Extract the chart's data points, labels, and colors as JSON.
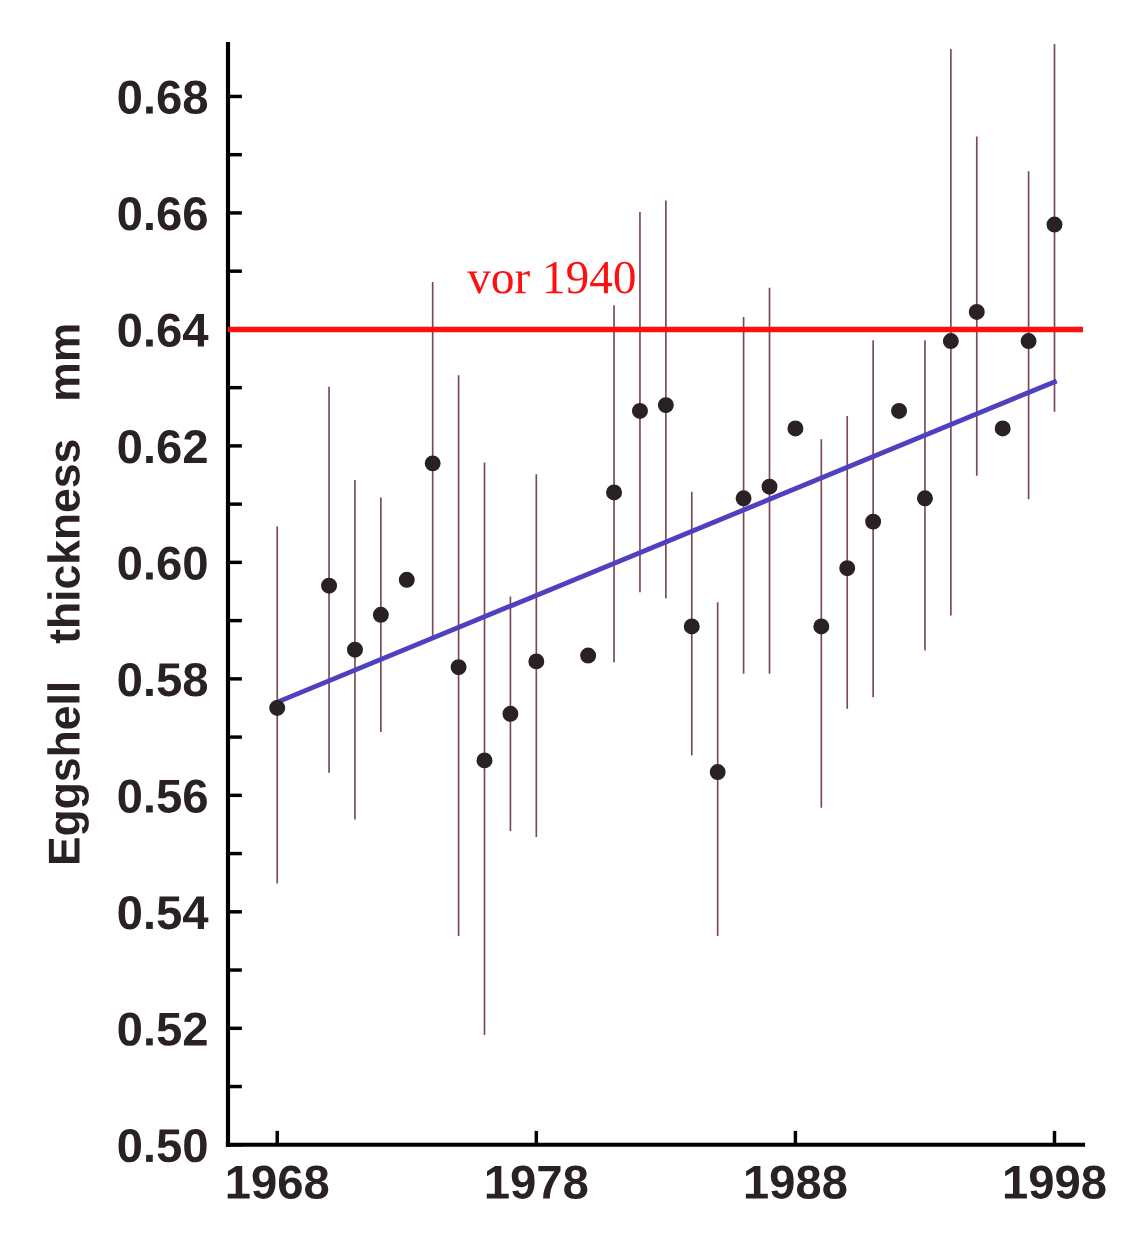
{
  "chart_data": {
    "type": "scatter",
    "ylabel": "Eggshell   thickness   mm",
    "xlim": [
      1966.1,
      1999.1
    ],
    "xticks": [
      1968,
      1978,
      1988,
      1998
    ],
    "ylim": [
      0.5,
      0.689
    ],
    "yticks": [
      {
        "value": 0.5,
        "label": "0.50"
      },
      {
        "value": 0.51,
        "label": null
      },
      {
        "value": 0.52,
        "label": "0.52"
      },
      {
        "value": 0.53,
        "label": null
      },
      {
        "value": 0.54,
        "label": "0.54"
      },
      {
        "value": 0.55,
        "label": null
      },
      {
        "value": 0.56,
        "label": "0.56"
      },
      {
        "value": 0.57,
        "label": null
      },
      {
        "value": 0.58,
        "label": "0.58"
      },
      {
        "value": 0.59,
        "label": null
      },
      {
        "value": 0.6,
        "label": "0.60"
      },
      {
        "value": 0.61,
        "label": null
      },
      {
        "value": 0.62,
        "label": "0.62"
      },
      {
        "value": 0.63,
        "label": null
      },
      {
        "value": 0.64,
        "label": "0.64"
      },
      {
        "value": 0.65,
        "label": null
      },
      {
        "value": 0.66,
        "label": "0.66"
      },
      {
        "value": 0.67,
        "label": null
      },
      {
        "value": 0.68,
        "label": "0.68"
      }
    ],
    "grid": false,
    "legend": false,
    "marker": "circle",
    "series": [
      {
        "color": "#2a2222",
        "x": [
          1968,
          1970,
          1971,
          1972,
          1973,
          1974,
          1975,
          1976,
          1977,
          1978,
          1980,
          1981,
          1982,
          1983,
          1984,
          1985,
          1986,
          1987,
          1988,
          1989,
          1990,
          1991,
          1992,
          1993,
          1994,
          1995,
          1996,
          1997,
          1998
        ],
        "values": [
          0.575,
          0.596,
          0.585,
          0.591,
          0.597,
          0.617,
          0.582,
          0.566,
          0.574,
          0.583,
          0.584,
          0.612,
          0.626,
          0.627,
          0.589,
          0.564,
          0.611,
          0.613,
          0.623,
          0.589,
          0.599,
          0.607,
          0.626,
          0.611,
          0.638,
          0.643,
          0.623,
          0.638,
          0.658
        ],
        "errors": [
          [
            0.545,
            0.606
          ],
          [
            0.564,
            0.63
          ],
          [
            0.556,
            0.614
          ],
          [
            0.571,
            0.611
          ],
          null,
          [
            0.587,
            0.648
          ],
          [
            0.536,
            0.632
          ],
          [
            0.519,
            0.617
          ],
          [
            0.554,
            0.594
          ],
          [
            0.553,
            0.615
          ],
          null,
          [
            0.583,
            0.644
          ],
          [
            0.595,
            0.66
          ],
          [
            0.594,
            0.662
          ],
          [
            0.567,
            0.612
          ],
          [
            0.536,
            0.593
          ],
          [
            0.581,
            0.642
          ],
          [
            0.581,
            0.647
          ],
          null,
          [
            0.558,
            0.621
          ],
          [
            0.575,
            0.625
          ],
          [
            0.577,
            0.638
          ],
          null,
          [
            0.585,
            0.638
          ],
          [
            0.591,
            0.688
          ],
          [
            0.615,
            0.673
          ],
          null,
          [
            0.611,
            0.667
          ],
          [
            0.626,
            0.689
          ]
        ]
      },
      {
        "type": "line",
        "color": "#5040c0",
        "marker": "none",
        "line_style": "solid",
        "x": [
          1968,
          1998
        ],
        "values": [
          0.576,
          0.631
        ]
      }
    ],
    "ref_lines": [
      {
        "axis": "y",
        "value": 0.64,
        "label": "vor 1940",
        "color": "#ff1010",
        "line_style": "solid"
      }
    ]
  }
}
